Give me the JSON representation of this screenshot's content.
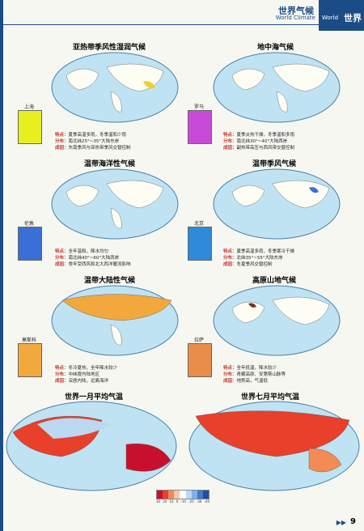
{
  "header": {
    "title": "世界气候",
    "subtitle": "World Climate",
    "tab_en": "World",
    "tab_zh": "世界"
  },
  "maps": [
    {
      "title": "亚热带季风性湿润气候"
    },
    {
      "title": "地中海气候"
    },
    {
      "title": "温带海洋性气候"
    },
    {
      "title": "温带季风气候"
    },
    {
      "title": "温带大陆性气候"
    },
    {
      "title": "高原山地气候"
    },
    {
      "title": "世界一月平均气温"
    },
    {
      "title": "世界七月平均气温"
    }
  ],
  "climographs": [
    {
      "name": "上海",
      "color": "#e8ef1f"
    },
    {
      "name": "罗马",
      "color": "#c84bd8"
    },
    {
      "name": "伦敦",
      "color": "#3b6fd6"
    },
    {
      "name": "北京",
      "color": "#2f8ad9"
    },
    {
      "name": "莫斯科",
      "color": "#f3a83e"
    },
    {
      "name": "拉萨",
      "color": "#e88d4a"
    }
  ],
  "descriptions": [
    {
      "k1": "特点：",
      "v1": "夏季高温多雨，冬季温和少雨",
      "k2": "分布：",
      "v2": "南北纬25°~35°大陆东岸",
      "k3": "成因：",
      "v3": "东南季风与亚热带季风交替控制"
    },
    {
      "k1": "特点：",
      "v1": "夏季炎热干燥，冬季温和多雨",
      "k2": "分布：",
      "v2": "南北纬30°~40°大陆西岸",
      "k3": "成因：",
      "v3": "副热带高压与西风带交替控制"
    },
    {
      "k1": "特点：",
      "v1": "全年温和，降水均匀",
      "k2": "分布：",
      "v2": "南北纬40°~60°大陆西岸",
      "k3": "成因：",
      "v3": "常年受西风和北大西洋暖流影响"
    },
    {
      "k1": "特点：",
      "v1": "夏季高温多雨，冬季寒冷干燥",
      "k2": "分布：",
      "v2": "北纬35°~55°大陆东岸",
      "k3": "成因：",
      "v3": "冬夏季风交替控制"
    },
    {
      "k1": "特点：",
      "v1": "冬冷夏热，全年降水较少",
      "k2": "分布：",
      "v2": "中纬度内陆地区",
      "k3": "成因：",
      "v3": "深居内陆，远离海洋"
    },
    {
      "k1": "特点：",
      "v1": "全年低温，降水较少",
      "k2": "分布：",
      "v2": "青藏高原、安第斯山脉等",
      "k3": "成因：",
      "v3": "地势高，气温低"
    }
  ],
  "legend": {
    "colors": [
      "#c8102e",
      "#e8402a",
      "#f28b54",
      "#f9c7a6",
      "#ffffff",
      "#bcd8f2",
      "#7fb0e6",
      "#3f7ccc",
      "#1f4ea3"
    ],
    "ticks": [
      "30",
      "20",
      "10",
      "0",
      "-10",
      "-20",
      "-30",
      "-40"
    ]
  },
  "footer": {
    "arrows": "▶▶",
    "page": "9"
  }
}
